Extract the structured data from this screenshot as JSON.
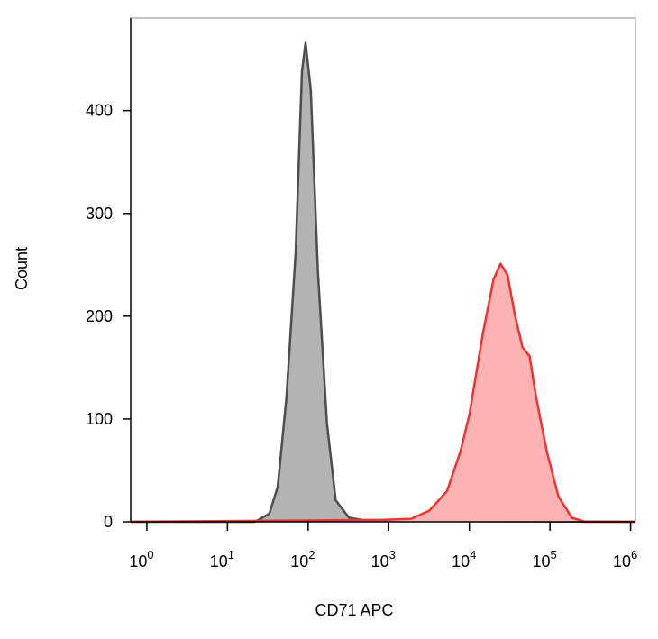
{
  "chart_data": {
    "type": "histogram-overlay",
    "xlabel": "CD71 APC",
    "ylabel": "Count",
    "xscale": "log",
    "xlim": [
      0.63,
      1150000
    ],
    "ylim": [
      0,
      490
    ],
    "xticks": [
      {
        "value": 1,
        "label": "10",
        "exponent": "0"
      },
      {
        "value": 10,
        "label": "10",
        "exponent": "1"
      },
      {
        "value": 100,
        "label": "10",
        "exponent": "2"
      },
      {
        "value": 1000,
        "label": "10",
        "exponent": "3"
      },
      {
        "value": 10000,
        "label": "10",
        "exponent": "4"
      },
      {
        "value": 100000,
        "label": "10",
        "exponent": "5"
      },
      {
        "value": 1000000,
        "label": "10",
        "exponent": "6"
      }
    ],
    "yticks": [
      0,
      100,
      200,
      300,
      400
    ],
    "series": [
      {
        "color": "#4d4d4d",
        "fill": "#b3b3b3",
        "x": [
          0.63,
          22,
          33,
          42,
          54,
          70,
          84,
          93,
          108,
          132,
          171,
          220,
          322,
          537,
          1150000
        ],
        "values": [
          0,
          0,
          8,
          34,
          122,
          262,
          438,
          466,
          420,
          245,
          96,
          21,
          4,
          1,
          0
        ]
      },
      {
        "color": "#ee3333",
        "fill": "#ffb3b3",
        "x": [
          0.63,
          890,
          1900,
          3200,
          5300,
          7800,
          10000,
          14700,
          20000,
          24400,
          29800,
          36800,
          45600,
          56000,
          67000,
          91000,
          127000,
          187000,
          274000,
          1150000
        ],
        "values": [
          0,
          2,
          3,
          11,
          30,
          69,
          104,
          183,
          236,
          251,
          240,
          201,
          170,
          161,
          122,
          69,
          25,
          4,
          0,
          0
        ]
      }
    ]
  }
}
